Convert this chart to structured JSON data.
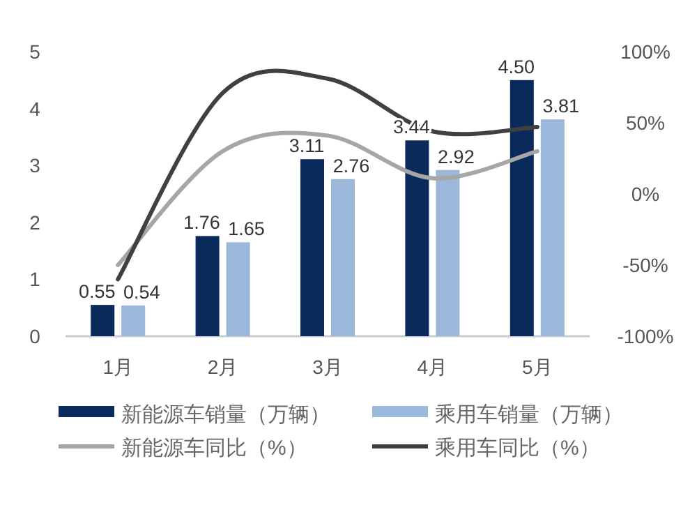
{
  "chart_data": {
    "type": "bar",
    "categories": [
      "1月",
      "2月",
      "3月",
      "4月",
      "5月"
    ],
    "series": [
      {
        "name": "新能源车销量（万辆）",
        "color": "#0b2a5c",
        "values": [
          0.55,
          1.76,
          3.11,
          3.44,
          4.5
        ],
        "value_labels": [
          "0.55",
          "1.76",
          "3.11",
          "3.44",
          "4.50"
        ]
      },
      {
        "name": "乘用车销量（万辆）",
        "color": "#9bb8db",
        "values": [
          0.54,
          1.65,
          2.76,
          2.92,
          3.81
        ],
        "value_labels": [
          "0.54",
          "1.65",
          "2.76",
          "2.92",
          "3.81"
        ]
      },
      {
        "name": "新能源车同比（%）",
        "type": "line",
        "axis": "y2",
        "color": "#a6a6a6",
        "values": [
          -50,
          30,
          41,
          11,
          30
        ]
      },
      {
        "name": "乘用车同比（%）",
        "type": "line",
        "axis": "y2",
        "color": "#404040",
        "values": [
          -60,
          71,
          81,
          44,
          47
        ]
      }
    ],
    "ylim": [
      0,
      5
    ],
    "yticks": [
      0,
      1,
      2,
      3,
      4,
      5
    ],
    "y2lim": [
      -100,
      100
    ],
    "y2ticks": [
      {
        "value": -100,
        "label": "-100%"
      },
      {
        "value": -50,
        "label": "-50%"
      },
      {
        "value": 0,
        "label": "0%"
      },
      {
        "value": 50,
        "label": "50%"
      },
      {
        "value": 100,
        "label": "100%"
      }
    ],
    "marker": "none",
    "line_style": "solid",
    "legend": "bottom",
    "grid": false
  }
}
